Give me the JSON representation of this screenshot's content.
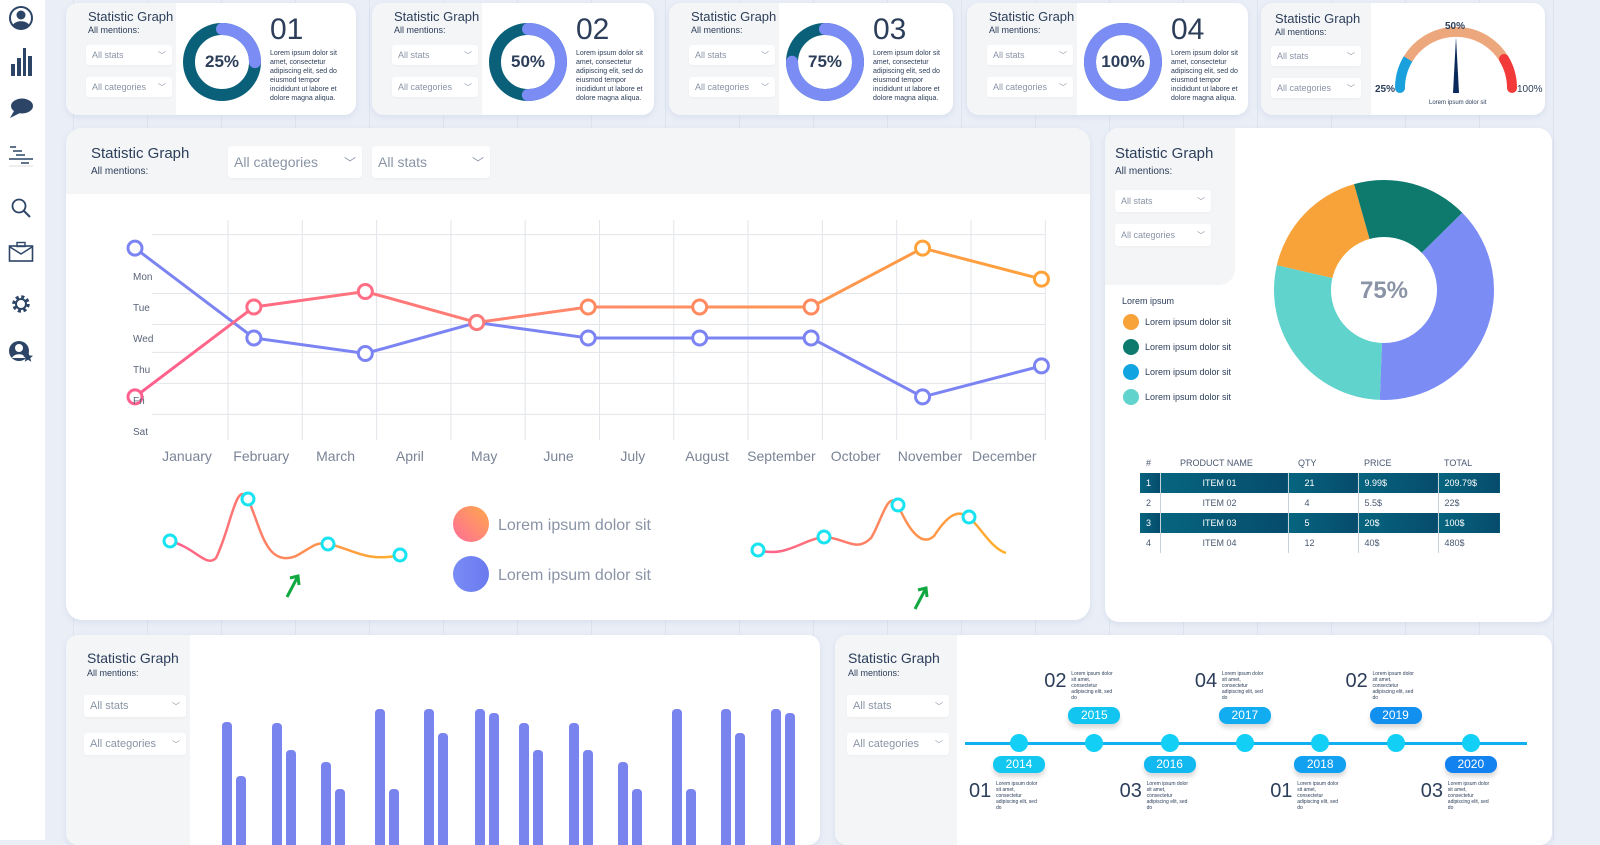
{
  "sidebar": {
    "icons": [
      "user-icon",
      "bar-chart-icon",
      "chat-icon",
      "gantt-icon",
      "search-icon",
      "briefcase-icon",
      "gear-icon",
      "user-star-icon"
    ]
  },
  "common": {
    "title": "Statistic Graph",
    "mentions": "All mentions:",
    "stats": "All stats",
    "categories": "All categories",
    "lorem_short": "Lorem ipsum dolor sit amet, consectetur adipiscing elit, sed do eiusmod tempor incididunt ut labore et dolore magna aliqua."
  },
  "top_cards": [
    {
      "percent": "25%",
      "value": 0.25,
      "number": "01"
    },
    {
      "percent": "50%",
      "value": 0.5,
      "number": "02"
    },
    {
      "percent": "75%",
      "value": 0.75,
      "number": "03"
    },
    {
      "percent": "100%",
      "value": 1.0,
      "number": "04"
    }
  ],
  "gauge": {
    "label_min": "25%",
    "label_mid": "50%",
    "label_max": "100%",
    "caption": "Lorem ipsum  dolor sit",
    "value": 0.5,
    "colors": [
      "#1aa0dc",
      "#eda77c",
      "#f23a3a"
    ]
  },
  "chart_data": [
    {
      "type": "line",
      "x_categories": [
        "January",
        "February",
        "March",
        "April",
        "May",
        "June",
        "July",
        "August",
        "September",
        "October",
        "November",
        "December"
      ],
      "y_categories": [
        "Mon",
        "Tue",
        "Wed",
        "Thu",
        "Fri",
        "Sat"
      ],
      "grid": true,
      "series": [
        {
          "color": "#7b84f2",
          "x": [
            -0.7,
            0.9,
            2.4,
            3.9,
            5.4,
            6.9,
            8.4,
            9.9,
            11.5
          ],
          "y": [
            -0.9,
            2.0,
            2.5,
            1.5,
            2.0,
            2.0,
            2.0,
            3.9,
            2.9
          ]
        },
        {
          "color": "#ff6e7f",
          "color_end": "#ffa23a",
          "x": [
            -0.7,
            0.9,
            2.4,
            3.9,
            5.4,
            6.9,
            8.4,
            9.9,
            11.5
          ],
          "y": [
            3.9,
            1.0,
            0.5,
            1.5,
            1.0,
            1.0,
            1.0,
            -0.9,
            0.1
          ]
        }
      ],
      "legend": [
        {
          "label": "Lorem ipsum dolor sit",
          "color": "#ff8a5c"
        },
        {
          "label": "Lorem ipsum dolor sit",
          "color": "#7b84f2"
        }
      ]
    },
    {
      "type": "pie",
      "center_label": "75%",
      "legend_title": "Lorem ipsum",
      "slices": [
        {
          "label": "Lorem ipsum  dolor sit",
          "value": 17,
          "color": "#f8a23a"
        },
        {
          "label": "Lorem ipsum  dolor sit",
          "value": 17,
          "color": "#0e7a6e"
        },
        {
          "label": "Lorem ipsum  dolor sit",
          "value": 38,
          "color": "#7b8cf5",
          "legend_color": "#10a5e0"
        },
        {
          "label": "Lorem ipsum  dolor sit",
          "value": 28,
          "color": "#5fd3cc"
        }
      ]
    },
    {
      "type": "bar",
      "color": "#7a84ef",
      "series": [
        {
          "values": [
            101,
            100,
            61,
            114,
            114,
            114,
            100,
            100,
            61,
            114,
            114,
            114
          ]
        },
        {
          "values": [
            47,
            73,
            34,
            34,
            90,
            110,
            73,
            73,
            34,
            34,
            90,
            110
          ]
        }
      ]
    }
  ],
  "table": {
    "headers": [
      "#",
      "PRODUCT NAME",
      "QTY",
      "PRICE",
      "TOTAL"
    ],
    "rows": [
      [
        "1",
        "ITEM 01",
        "21",
        "9.99$",
        "209.79$"
      ],
      [
        "2",
        "ITEM 02",
        "4",
        "5.5$",
        "22$"
      ],
      [
        "3",
        "ITEM 03",
        "5",
        "20$",
        "100$"
      ],
      [
        "4",
        "ITEM 04",
        "12",
        "40$",
        "480$"
      ]
    ]
  },
  "timeline": {
    "events": [
      {
        "year": "2014",
        "number": "01",
        "color": "#12c8f0"
      },
      {
        "year": "2015",
        "number": "02",
        "color": "#12c4f0"
      },
      {
        "year": "2016",
        "number": "03",
        "color": "#12b8f0"
      },
      {
        "year": "2017",
        "number": "04",
        "color": "#12acf0"
      },
      {
        "year": "2018",
        "number": "01",
        "color": "#12a0f0"
      },
      {
        "year": "2019",
        "number": "02",
        "color": "#1290f0"
      },
      {
        "year": "2020",
        "number": "03",
        "color": "#1282f0"
      }
    ],
    "lorem": "Lorem ipsum dolor sit amet, consectetur adipiscing elit, sed do"
  }
}
